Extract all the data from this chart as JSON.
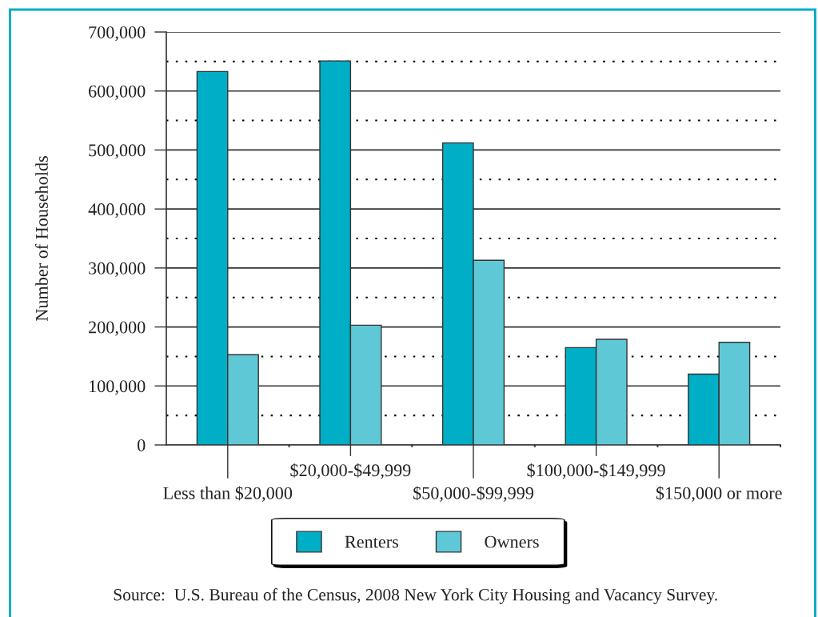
{
  "chart_data": {
    "type": "bar",
    "ylabel": "Number of Households",
    "categories": [
      "Less than $20,000",
      "$20,000-$49,999",
      "$50,000-$99,999",
      "$100,000-$149,999",
      "$150,000 or more"
    ],
    "series": [
      {
        "name": "Renters",
        "color": "#00aec5",
        "values": [
          633000,
          651000,
          512000,
          165000,
          120000
        ]
      },
      {
        "name": "Owners",
        "color": "#5fc8d7",
        "values": [
          153000,
          203000,
          313000,
          179000,
          174000
        ]
      }
    ],
    "ylim": [
      0,
      700000
    ],
    "yticks": [
      0,
      {
        "value": 100000,
        "label": "100,000"
      },
      {
        "value": 200000,
        "label": "200,000"
      },
      {
        "value": 300000,
        "label": "300,000"
      },
      {
        "value": 400000,
        "label": "400,000"
      },
      {
        "value": 500000,
        "label": "500,000"
      },
      {
        "value": 600000,
        "label": "600,000"
      },
      {
        "value": 700000,
        "label": "700,000"
      }
    ],
    "grid": "y",
    "ref_lines": [
      {
        "axis": "y",
        "value": 50000,
        "color": "#000000",
        "line_style": "dotted"
      },
      {
        "axis": "y",
        "value": 150000,
        "color": "#000000",
        "line_style": "dotted"
      },
      {
        "axis": "y",
        "value": 250000,
        "color": "#000000",
        "line_style": "dotted"
      },
      {
        "axis": "y",
        "value": 350000,
        "color": "#000000",
        "line_style": "dotted"
      },
      {
        "axis": "y",
        "value": 450000,
        "color": "#000000",
        "line_style": "dotted"
      },
      {
        "axis": "y",
        "value": 550000,
        "color": "#000000",
        "line_style": "dotted"
      },
      {
        "axis": "y",
        "value": 650000,
        "color": "#000000",
        "line_style": "dotted"
      }
    ],
    "legend": "bottom",
    "annotations": [
      "Source:  U.S. Bureau of the Census, 2008 New York City Housing and Vacancy Survey."
    ]
  }
}
